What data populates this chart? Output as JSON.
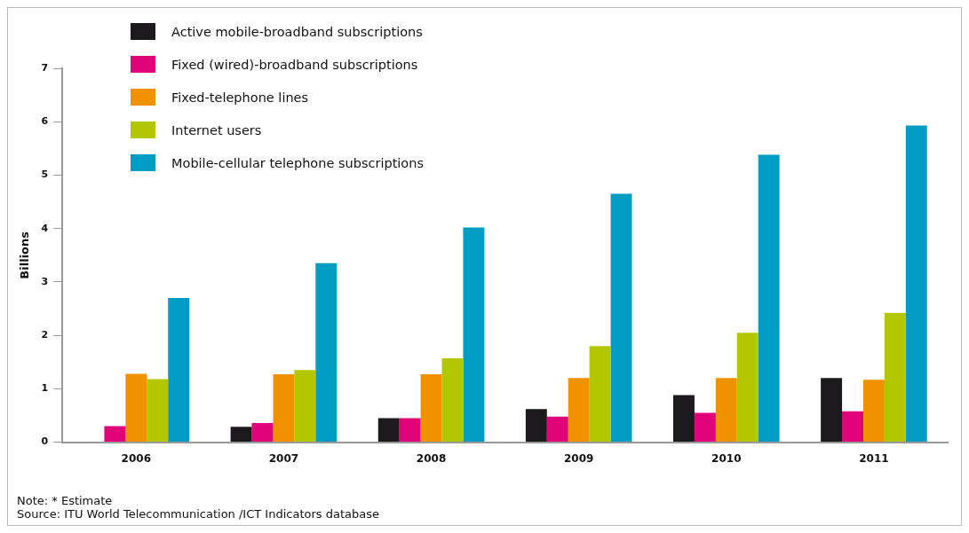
{
  "chart_data": {
    "type": "bar",
    "ylabel": "Billions",
    "categories": [
      "2006",
      "2007",
      "2008",
      "2009",
      "2010",
      "2011"
    ],
    "series": [
      {
        "name": "Active mobile-broadband subscriptions",
        "color": "#1c1a1d",
        "values": [
          null,
          0.29,
          0.45,
          0.62,
          0.88,
          1.2
        ]
      },
      {
        "name": "Fixed (wired)-broadband subscriptions",
        "color": "#e0037a",
        "values": [
          0.3,
          0.36,
          0.45,
          0.48,
          0.55,
          0.58
        ]
      },
      {
        "name": "Fixed-telephone lines",
        "color": "#f09200",
        "values": [
          1.28,
          1.27,
          1.27,
          1.2,
          1.2,
          1.17
        ]
      },
      {
        "name": "Internet users",
        "color": "#b2c700",
        "values": [
          1.18,
          1.35,
          1.57,
          1.8,
          2.05,
          2.42
        ]
      },
      {
        "name": "Mobile-cellular telephone subscriptions",
        "color": "#009cc4",
        "values": [
          2.7,
          3.35,
          4.02,
          4.65,
          5.38,
          5.93
        ]
      }
    ],
    "ylim": [
      0,
      7
    ],
    "yticks": [
      0,
      1,
      2,
      3,
      4,
      5,
      6,
      7
    ],
    "grid": false,
    "legend": "top left",
    "annotations": [
      "Note: * Estimate",
      "Source: ITU World Telecommunication /ICT Indicators database"
    ]
  }
}
